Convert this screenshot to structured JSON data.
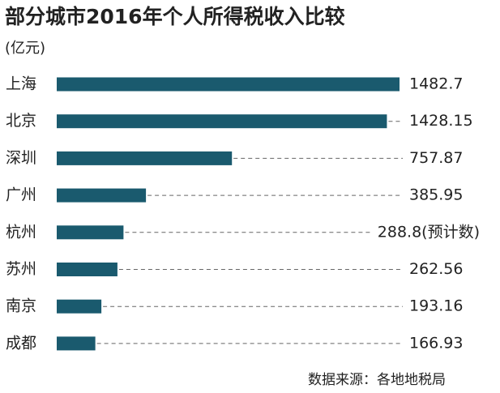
{
  "chart_data": {
    "type": "bar",
    "orientation": "horizontal",
    "title": "部分城市2016年个人所得税收入比较",
    "subtitle": "(亿元)",
    "source": "数据来源：各地地税局",
    "categories": [
      "上海",
      "北京",
      "深圳",
      "广州",
      "杭州",
      "苏州",
      "南京",
      "成都"
    ],
    "values": [
      1482.7,
      1428.15,
      757.87,
      385.95,
      288.8,
      262.56,
      193.16,
      166.93
    ],
    "value_labels": [
      "1482.7",
      "1428.15",
      "757.87",
      "385.95",
      "288.8(预计数)",
      "262.56",
      "193.16",
      "166.93"
    ],
    "color": "#1a5a6e"
  }
}
